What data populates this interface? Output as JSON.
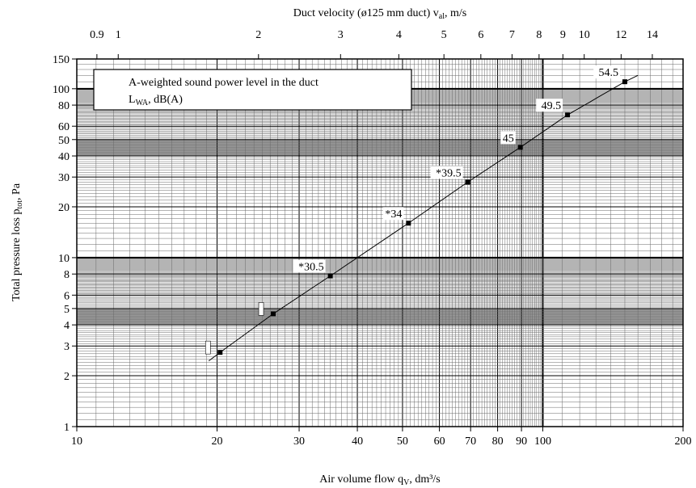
{
  "chart_data": {
    "type": "line",
    "title": "",
    "top_axis": {
      "label": "Duct velocity (ø125 mm duct) v",
      "label_sub": "al",
      "label_tail": ", m/s",
      "scale": "log",
      "ticks": [
        "0.9",
        "1",
        "2",
        "3",
        "4",
        "5",
        "6",
        "7",
        "8",
        "9",
        "10",
        "12",
        "14"
      ]
    },
    "xlabel": "Air volume flow q",
    "xlabel_sub": "V",
    "xlabel_tail": ", dm³/s",
    "ylabel": "Total pressure loss p",
    "ylabel_sub": "tot",
    "ylabel_tail": ", Pa",
    "x_scale": "log",
    "y_scale": "log",
    "xlim": [
      10,
      200
    ],
    "ylim": [
      1,
      150
    ],
    "x_ticks": [
      "10",
      "20",
      "30",
      "40",
      "50",
      "60",
      "70",
      "80",
      "90",
      "100",
      "200"
    ],
    "y_ticks": [
      "1",
      "2",
      "3",
      "4",
      "5",
      "6",
      "8",
      "10",
      "20",
      "30",
      "40",
      "50",
      "60",
      "80",
      "100",
      "150"
    ],
    "grid": true,
    "legend": {
      "position": "top-left",
      "line1": "A-weighted sound power level in the duct",
      "line2_main": "L",
      "line2_sub": "WA",
      "line2_tail": ", dB(A)"
    },
    "series": [
      {
        "x": [
          19.2,
          20.3,
          26.4,
          35.0,
          51.5,
          69.0,
          89.5,
          113,
          150,
          160
        ],
        "y": [
          2.45,
          2.75,
          4.65,
          7.8,
          16.0,
          28.0,
          45.0,
          70.0,
          110,
          120
        ],
        "markers": [
          {
            "x": 20.3,
            "y": 2.75,
            "label": ""
          },
          {
            "x": 26.4,
            "y": 4.65,
            "label": ""
          },
          {
            "x": 35.0,
            "y": 7.8,
            "label": "*30.5"
          },
          {
            "x": 51.5,
            "y": 16.0,
            "label": "*34"
          },
          {
            "x": 69.0,
            "y": 28.0,
            "label": "*39.5"
          },
          {
            "x": 89.5,
            "y": 45.0,
            "label": "45"
          },
          {
            "x": 113,
            "y": 70.0,
            "label": "49.5"
          },
          {
            "x": 150,
            "y": 110,
            "label": "54.5"
          }
        ]
      }
    ]
  }
}
